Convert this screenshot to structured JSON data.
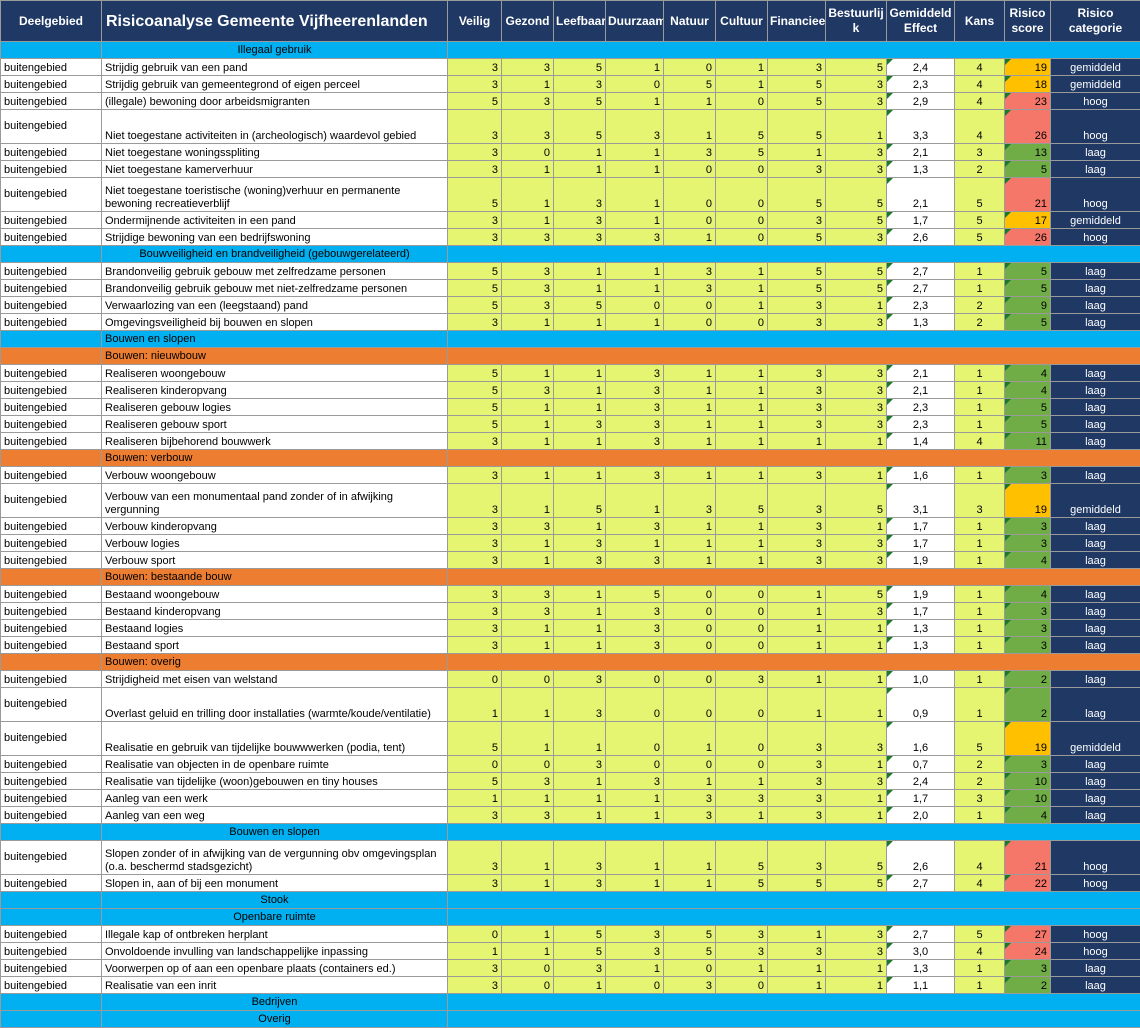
{
  "header": {
    "deelgebied": "Deelgebied",
    "title": "Risicoanalyse Gemeente Vijfheerenlanden",
    "cols": [
      "Veilig",
      "Gezond",
      "Leefbaar",
      "Duurzaam",
      "Natuur",
      "Cultuur",
      "Financieel",
      "Bestuurlij k",
      "Gemiddeld Effect",
      "Kans",
      "Risico score",
      "Risico categorie"
    ]
  },
  "colors": {
    "header_bg": "#1f3864",
    "section_blue": "#00b0f0",
    "section_orange": "#ed7d31",
    "score_yellow": "#e6f571",
    "risk_green": "#70ad47",
    "risk_orange": "#ffc000",
    "risk_red": "#f4776a"
  },
  "rows": [
    {
      "type": "section",
      "label": "Illegaal gebruik",
      "color": "blue",
      "align": "center"
    },
    {
      "area": "buitengebied",
      "desc": "Strijdig gebruik van een pand",
      "scores": [
        "3",
        "3",
        "5",
        "1",
        "0",
        "1",
        "3",
        "5"
      ],
      "effect": "2,4",
      "kans": "4",
      "risk": "19",
      "cat": "gemiddeld",
      "level": "orange"
    },
    {
      "area": "buitengebied",
      "desc": "Strijdig gebruik van gemeentegrond of eigen perceel",
      "scores": [
        "3",
        "1",
        "3",
        "0",
        "5",
        "1",
        "5",
        "3"
      ],
      "effect": "2,3",
      "kans": "4",
      "risk": "18",
      "cat": "gemiddeld",
      "level": "orange"
    },
    {
      "area": "buitengebied",
      "desc": "(illegale) bewoning door arbeidsmigranten",
      "scores": [
        "5",
        "3",
        "5",
        "1",
        "1",
        "0",
        "5",
        "3"
      ],
      "effect": "2,9",
      "kans": "4",
      "risk": "23",
      "cat": "hoog",
      "level": "red"
    },
    {
      "area": "buitengebied",
      "desc": "Niet toegestane activiteiten in (archeologisch) waardevol gebied",
      "scores": [
        "3",
        "3",
        "5",
        "3",
        "1",
        "5",
        "5",
        "1"
      ],
      "effect": "3,3",
      "kans": "4",
      "risk": "26",
      "cat": "hoog",
      "level": "red",
      "tall": true
    },
    {
      "area": "buitengebied",
      "desc": "Niet toegestane woningsspliting",
      "scores": [
        "3",
        "0",
        "1",
        "1",
        "3",
        "5",
        "1",
        "3"
      ],
      "effect": "2,1",
      "kans": "3",
      "risk": "13",
      "cat": "laag",
      "level": "green"
    },
    {
      "area": "buitengebied",
      "desc": "Niet toegestane kamerverhuur",
      "scores": [
        "3",
        "1",
        "1",
        "1",
        "0",
        "0",
        "3",
        "3"
      ],
      "effect": "1,3",
      "kans": "2",
      "risk": "5",
      "cat": "laag",
      "level": "green"
    },
    {
      "area": "buitengebied",
      "desc": "Niet toegestane toeristische (woning)verhuur en  permanente bewoning recreatieverblijf",
      "scores": [
        "5",
        "1",
        "3",
        "1",
        "0",
        "0",
        "5",
        "5"
      ],
      "effect": "2,1",
      "kans": "5",
      "risk": "21",
      "cat": "hoog",
      "level": "red",
      "tall": true
    },
    {
      "area": "buitengebied",
      "desc": "Ondermijnende activiteiten in een pand",
      "scores": [
        "3",
        "1",
        "3",
        "1",
        "0",
        "0",
        "3",
        "5"
      ],
      "effect": "1,7",
      "kans": "5",
      "risk": "17",
      "cat": "gemiddeld",
      "level": "orange"
    },
    {
      "area": "buitengebied",
      "desc": "Strijdige bewoning van een bedrijfswoning",
      "scores": [
        "3",
        "3",
        "3",
        "3",
        "1",
        "0",
        "5",
        "3"
      ],
      "effect": "2,6",
      "kans": "5",
      "risk": "26",
      "cat": "hoog",
      "level": "red"
    },
    {
      "type": "section",
      "label": "Bouwveiligheid en brandveiligheid (gebouwgerelateerd)",
      "color": "blue",
      "align": "center"
    },
    {
      "area": "buitengebied",
      "desc": "Brandonveilig gebruik gebouw met zelfredzame personen",
      "scores": [
        "5",
        "3",
        "1",
        "1",
        "3",
        "1",
        "5",
        "5"
      ],
      "effect": "2,7",
      "kans": "1",
      "risk": "5",
      "cat": "laag",
      "level": "green"
    },
    {
      "area": "buitengebied",
      "desc": "Brandonveilig gebruik gebouw met niet-zelfredzame personen",
      "scores": [
        "5",
        "3",
        "1",
        "1",
        "3",
        "1",
        "5",
        "5"
      ],
      "effect": "2,7",
      "kans": "1",
      "risk": "5",
      "cat": "laag",
      "level": "green"
    },
    {
      "area": "buitengebied",
      "desc": "Verwaarlozing van een (leegstaand) pand",
      "scores": [
        "5",
        "3",
        "5",
        "0",
        "0",
        "1",
        "3",
        "1"
      ],
      "effect": "2,3",
      "kans": "2",
      "risk": "9",
      "cat": "laag",
      "level": "green"
    },
    {
      "area": "buitengebied",
      "desc": "Omgevingsveiligheid bij bouwen en slopen",
      "scores": [
        "3",
        "1",
        "1",
        "1",
        "0",
        "0",
        "3",
        "3"
      ],
      "effect": "1,3",
      "kans": "2",
      "risk": "5",
      "cat": "laag",
      "level": "green"
    },
    {
      "type": "section",
      "label": "Bouwen en slopen",
      "color": "blue",
      "align": "left"
    },
    {
      "type": "section",
      "label": "Bouwen: nieuwbouw",
      "color": "orange",
      "align": "left"
    },
    {
      "area": "buitengebied",
      "desc": "Realiseren woongebouw",
      "scores": [
        "5",
        "1",
        "1",
        "3",
        "1",
        "1",
        "3",
        "3"
      ],
      "effect": "2,1",
      "kans": "1",
      "risk": "4",
      "cat": "laag",
      "level": "green"
    },
    {
      "area": "buitengebied",
      "desc": "Realiseren kinderopvang",
      "scores": [
        "5",
        "3",
        "1",
        "3",
        "1",
        "1",
        "3",
        "3"
      ],
      "effect": "2,1",
      "kans": "1",
      "risk": "4",
      "cat": "laag",
      "level": "green"
    },
    {
      "area": "buitengebied",
      "desc": "Realiseren gebouw logies",
      "scores": [
        "5",
        "1",
        "1",
        "3",
        "1",
        "1",
        "3",
        "3"
      ],
      "effect": "2,3",
      "kans": "1",
      "risk": "5",
      "cat": "laag",
      "level": "green"
    },
    {
      "area": "buitengebied",
      "desc": "Realiseren gebouw sport",
      "scores": [
        "5",
        "1",
        "3",
        "3",
        "1",
        "1",
        "3",
        "3"
      ],
      "effect": "2,3",
      "kans": "1",
      "risk": "5",
      "cat": "laag",
      "level": "green"
    },
    {
      "area": "buitengebied",
      "desc": "Realiseren bijbehorend bouwwerk",
      "scores": [
        "3",
        "1",
        "1",
        "3",
        "1",
        "1",
        "1",
        "1"
      ],
      "effect": "1,4",
      "kans": "4",
      "risk": "11",
      "cat": "laag",
      "level": "green"
    },
    {
      "type": "section",
      "label": "Bouwen: verbouw",
      "color": "orange",
      "align": "left"
    },
    {
      "area": "buitengebied",
      "desc": "Verbouw woongebouw",
      "scores": [
        "3",
        "1",
        "1",
        "3",
        "1",
        "1",
        "3",
        "1"
      ],
      "effect": "1,6",
      "kans": "1",
      "risk": "3",
      "cat": "laag",
      "level": "green"
    },
    {
      "area": "buitengebied",
      "desc": "Verbouw van een monumentaal pand zonder of in afwijking vergunning",
      "scores": [
        "3",
        "1",
        "5",
        "1",
        "3",
        "5",
        "3",
        "5"
      ],
      "effect": "3,1",
      "kans": "3",
      "risk": "19",
      "cat": "gemiddeld",
      "level": "orange",
      "tall": true
    },
    {
      "area": "buitengebied",
      "desc": "Verbouw kinderopvang",
      "scores": [
        "3",
        "3",
        "1",
        "3",
        "1",
        "1",
        "3",
        "1"
      ],
      "effect": "1,7",
      "kans": "1",
      "risk": "3",
      "cat": "laag",
      "level": "green"
    },
    {
      "area": "buitengebied",
      "desc": "Verbouw logies",
      "scores": [
        "3",
        "1",
        "3",
        "1",
        "1",
        "1",
        "3",
        "3"
      ],
      "effect": "1,7",
      "kans": "1",
      "risk": "3",
      "cat": "laag",
      "level": "green"
    },
    {
      "area": "buitengebied",
      "desc": "Verbouw sport",
      "scores": [
        "3",
        "1",
        "3",
        "3",
        "1",
        "1",
        "3",
        "3"
      ],
      "effect": "1,9",
      "kans": "1",
      "risk": "4",
      "cat": "laag",
      "level": "green"
    },
    {
      "type": "section",
      "label": "Bouwen: bestaande bouw",
      "color": "orange",
      "align": "left"
    },
    {
      "area": "buitengebied",
      "desc": "Bestaand woongebouw",
      "scores": [
        "3",
        "3",
        "1",
        "5",
        "0",
        "0",
        "1",
        "5"
      ],
      "effect": "1,9",
      "kans": "1",
      "risk": "4",
      "cat": "laag",
      "level": "green"
    },
    {
      "area": "buitengebied",
      "desc": "Bestaand kinderopvang",
      "scores": [
        "3",
        "3",
        "1",
        "3",
        "0",
        "0",
        "1",
        "3"
      ],
      "effect": "1,7",
      "kans": "1",
      "risk": "3",
      "cat": "laag",
      "level": "green"
    },
    {
      "area": "buitengebied",
      "desc": "Bestaand logies",
      "scores": [
        "3",
        "1",
        "1",
        "3",
        "0",
        "0",
        "1",
        "1"
      ],
      "effect": "1,3",
      "kans": "1",
      "risk": "3",
      "cat": "laag",
      "level": "green"
    },
    {
      "area": "buitengebied",
      "desc": "Bestaand sport",
      "scores": [
        "3",
        "1",
        "1",
        "3",
        "0",
        "0",
        "1",
        "1"
      ],
      "effect": "1,3",
      "kans": "1",
      "risk": "3",
      "cat": "laag",
      "level": "green"
    },
    {
      "type": "section",
      "label": "Bouwen: overig",
      "color": "orange",
      "align": "left"
    },
    {
      "area": "buitengebied",
      "desc": "Strijdigheid met eisen van welstand",
      "scores": [
        "0",
        "0",
        "3",
        "0",
        "0",
        "3",
        "1",
        "1"
      ],
      "effect": "1,0",
      "kans": "1",
      "risk": "2",
      "cat": "laag",
      "level": "green"
    },
    {
      "area": "buitengebied",
      "desc": "Overlast geluid en trilling door installaties (warmte/koude/ventilatie)",
      "scores": [
        "1",
        "1",
        "3",
        "0",
        "0",
        "0",
        "1",
        "1"
      ],
      "effect": "0,9",
      "kans": "1",
      "risk": "2",
      "cat": "laag",
      "level": "green",
      "tall": true
    },
    {
      "area": "buitengebied",
      "desc": "Realisatie en gebruik van tijdelijke bouwwwerken (podia, tent)",
      "scores": [
        "5",
        "1",
        "1",
        "0",
        "1",
        "0",
        "3",
        "3"
      ],
      "effect": "1,6",
      "kans": "5",
      "risk": "19",
      "cat": "gemiddeld",
      "level": "orange",
      "tall": true
    },
    {
      "area": "buitengebied",
      "desc": "Realisatie van objecten in de openbare ruimte",
      "scores": [
        "0",
        "0",
        "3",
        "0",
        "0",
        "0",
        "3",
        "1"
      ],
      "effect": "0,7",
      "kans": "2",
      "risk": "3",
      "cat": "laag",
      "level": "green"
    },
    {
      "area": "buitengebied",
      "desc": "Realisatie van tijdelijke (woon)gebouwen en tiny houses",
      "scores": [
        "5",
        "3",
        "1",
        "3",
        "1",
        "1",
        "3",
        "3"
      ],
      "effect": "2,4",
      "kans": "2",
      "risk": "10",
      "cat": "laag",
      "level": "green"
    },
    {
      "area": "buitengebied",
      "desc": "Aanleg van een werk",
      "scores": [
        "1",
        "1",
        "1",
        "1",
        "3",
        "3",
        "3",
        "1"
      ],
      "effect": "1,7",
      "kans": "3",
      "risk": "10",
      "cat": "laag",
      "level": "green"
    },
    {
      "area": "buitengebied",
      "desc": "Aanleg van een weg",
      "scores": [
        "3",
        "3",
        "1",
        "1",
        "3",
        "1",
        "3",
        "1"
      ],
      "effect": "2,0",
      "kans": "1",
      "risk": "4",
      "cat": "laag",
      "level": "green"
    },
    {
      "type": "section",
      "label": "Bouwen en slopen",
      "color": "blue",
      "align": "center"
    },
    {
      "area": "buitengebied",
      "desc": "Slopen zonder of in afwijking van de vergunning obv omgevingsplan (o.a. beschermd stadsgezicht)",
      "scores": [
        "3",
        "1",
        "3",
        "1",
        "1",
        "5",
        "3",
        "5"
      ],
      "effect": "2,6",
      "kans": "4",
      "risk": "21",
      "cat": "hoog",
      "level": "red",
      "tall": true
    },
    {
      "area": "buitengebied",
      "desc": "Slopen in, aan of bij een monument",
      "scores": [
        "3",
        "1",
        "3",
        "1",
        "1",
        "5",
        "5",
        "5"
      ],
      "effect": "2,7",
      "kans": "4",
      "risk": "22",
      "cat": "hoog",
      "level": "red"
    },
    {
      "type": "section",
      "label": "Stook",
      "color": "blue",
      "align": "center"
    },
    {
      "type": "section",
      "label": "Openbare ruimte",
      "color": "blue",
      "align": "center"
    },
    {
      "area": "buitengebied",
      "desc": "Illegale kap of ontbreken herplant",
      "scores": [
        "0",
        "1",
        "5",
        "3",
        "5",
        "3",
        "1",
        "3"
      ],
      "effect": "2,7",
      "kans": "5",
      "risk": "27",
      "cat": "hoog",
      "level": "red"
    },
    {
      "area": "buitengebied",
      "desc": "Onvoldoende invulling van landschappelijke inpassing",
      "scores": [
        "1",
        "1",
        "5",
        "3",
        "5",
        "3",
        "3",
        "3"
      ],
      "effect": "3,0",
      "kans": "4",
      "risk": "24",
      "cat": "hoog",
      "level": "red"
    },
    {
      "area": "buitengebied",
      "desc": "Voorwerpen op of aan een openbare plaats (containers ed.)",
      "scores": [
        "3",
        "0",
        "3",
        "1",
        "0",
        "1",
        "1",
        "1"
      ],
      "effect": "1,3",
      "kans": "1",
      "risk": "3",
      "cat": "laag",
      "level": "green"
    },
    {
      "area": "buitengebied",
      "desc": "Realisatie van een inrit",
      "scores": [
        "3",
        "0",
        "1",
        "0",
        "3",
        "0",
        "1",
        "1"
      ],
      "effect": "1,1",
      "kans": "1",
      "risk": "2",
      "cat": "laag",
      "level": "green"
    },
    {
      "type": "section",
      "label": "Bedrijven",
      "color": "blue",
      "align": "center"
    },
    {
      "type": "section",
      "label": "Overig",
      "color": "blue",
      "align": "center"
    }
  ]
}
